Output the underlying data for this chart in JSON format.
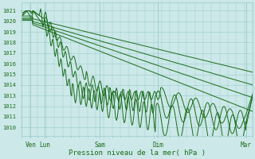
{
  "background_color": "#cce8e8",
  "grid_color": "#99cccc",
  "line_color": "#1a6b1a",
  "title": "Pression niveau de la mer( hPa )",
  "xtick_labels": [
    "Ven",
    "Lun",
    "Sam",
    "Dim",
    "Mar"
  ],
  "xtick_positions": [
    0.04,
    0.1,
    0.34,
    0.59,
    0.97
  ],
  "ylim": [
    1009.2,
    1021.8
  ],
  "yticks": [
    1010,
    1011,
    1012,
    1013,
    1014,
    1015,
    1016,
    1017,
    1018,
    1019,
    1020,
    1021
  ],
  "n_points": 300,
  "line_width": 0.7,
  "figsize": [
    3.2,
    2.0
  ],
  "dpi": 100
}
